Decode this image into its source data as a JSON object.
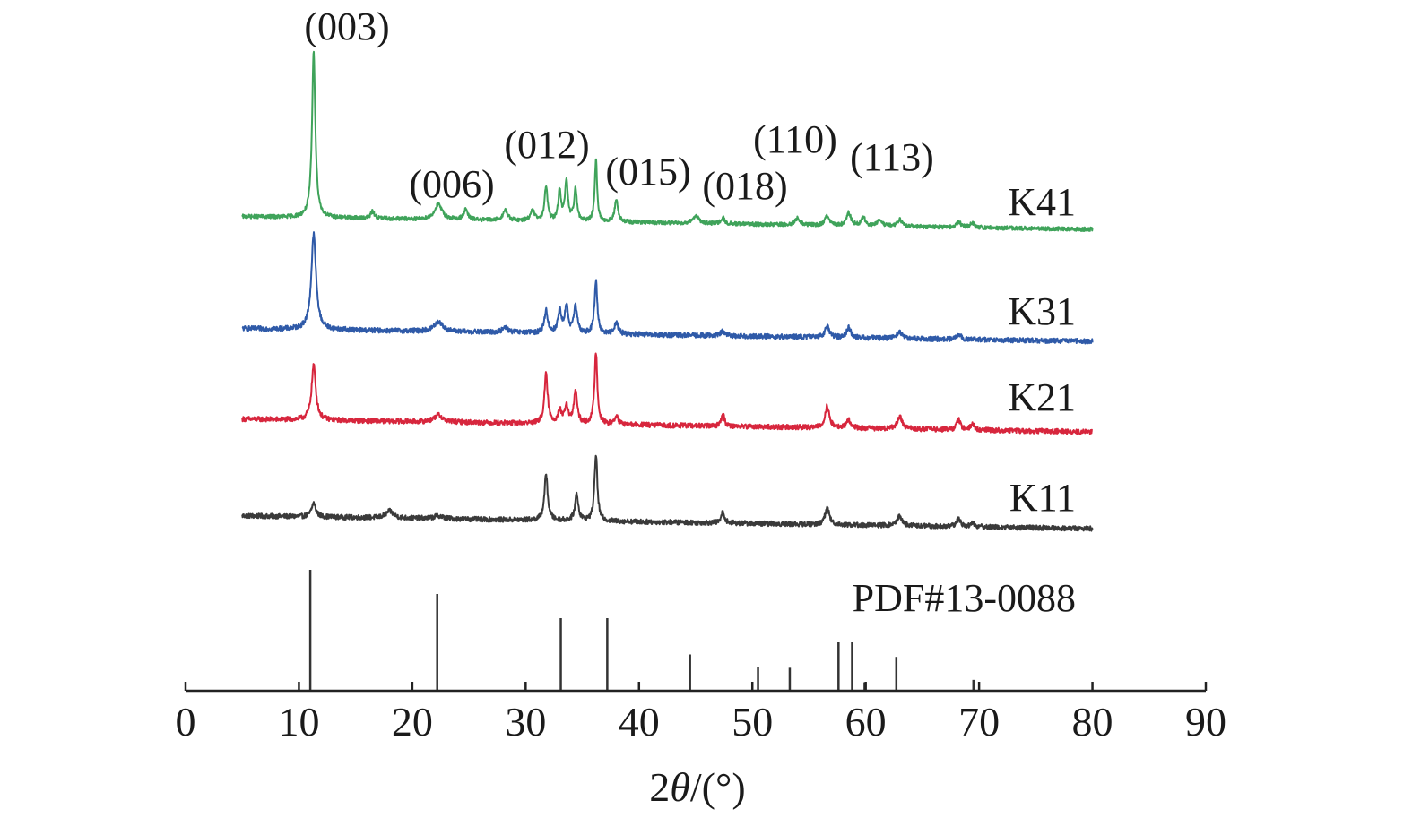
{
  "chart_data": {
    "type": "line",
    "xlabel_prefix": "2",
    "xlabel_symbol": "θ",
    "xlabel_suffix": "/(°)",
    "xlim": [
      0,
      90
    ],
    "xticks": [
      0,
      10,
      20,
      30,
      40,
      50,
      60,
      70,
      80,
      90
    ],
    "grid": false,
    "series": [
      {
        "name": "K11",
        "color": "#3a3a3a",
        "base_start": 0.13,
        "base_end": 0.0,
        "noise": 0.05,
        "peaks": [
          [
            11.3,
            0.14,
            0.45
          ],
          [
            18.0,
            0.07,
            0.8
          ],
          [
            22.3,
            0.03,
            0.9
          ],
          [
            31.8,
            0.47,
            0.35
          ],
          [
            34.5,
            0.27,
            0.35
          ],
          [
            36.2,
            0.68,
            0.3
          ],
          [
            47.4,
            0.11,
            0.35
          ],
          [
            56.6,
            0.17,
            0.45
          ],
          [
            63.0,
            0.1,
            0.5
          ],
          [
            68.2,
            0.08,
            0.4
          ],
          [
            69.4,
            0.04,
            0.4
          ]
        ]
      },
      {
        "name": "K21",
        "color": "#d7263d",
        "base_start": 0.13,
        "base_end": 0.0,
        "noise": 0.05,
        "peaks": [
          [
            11.3,
            0.56,
            0.45
          ],
          [
            22.3,
            0.07,
            0.9
          ],
          [
            31.8,
            0.5,
            0.35
          ],
          [
            33.0,
            0.13,
            0.35
          ],
          [
            33.6,
            0.18,
            0.35
          ],
          [
            34.4,
            0.33,
            0.35
          ],
          [
            36.2,
            0.73,
            0.3
          ],
          [
            38.0,
            0.08,
            0.4
          ],
          [
            47.4,
            0.12,
            0.35
          ],
          [
            56.6,
            0.22,
            0.45
          ],
          [
            58.5,
            0.08,
            0.45
          ],
          [
            63.0,
            0.13,
            0.5
          ],
          [
            68.2,
            0.1,
            0.4
          ],
          [
            69.4,
            0.06,
            0.4
          ]
        ]
      },
      {
        "name": "K31",
        "color": "#2f5aa8",
        "base_start": 0.13,
        "base_end": 0.0,
        "noise": 0.05,
        "peaks": [
          [
            11.3,
            0.97,
            0.5
          ],
          [
            22.3,
            0.1,
            0.9
          ],
          [
            28.2,
            0.05,
            0.6
          ],
          [
            31.8,
            0.23,
            0.35
          ],
          [
            33.0,
            0.22,
            0.35
          ],
          [
            33.6,
            0.27,
            0.35
          ],
          [
            34.4,
            0.27,
            0.35
          ],
          [
            36.2,
            0.53,
            0.3
          ],
          [
            38.0,
            0.12,
            0.4
          ],
          [
            47.4,
            0.06,
            0.35
          ],
          [
            56.6,
            0.12,
            0.45
          ],
          [
            58.5,
            0.1,
            0.45
          ],
          [
            63.0,
            0.07,
            0.5
          ],
          [
            68.2,
            0.06,
            0.4
          ]
        ]
      },
      {
        "name": "K41",
        "color": "#3fa35a",
        "base_start": 0.13,
        "base_end": 0.0,
        "noise": 0.04,
        "peaks": [
          [
            11.3,
            1.69,
            0.35
          ],
          [
            16.5,
            0.07,
            0.4
          ],
          [
            22.3,
            0.15,
            0.8
          ],
          [
            24.7,
            0.1,
            0.45
          ],
          [
            28.2,
            0.1,
            0.5
          ],
          [
            30.6,
            0.1,
            0.45
          ],
          [
            31.8,
            0.36,
            0.3
          ],
          [
            33.0,
            0.3,
            0.3
          ],
          [
            33.6,
            0.4,
            0.3
          ],
          [
            34.4,
            0.33,
            0.3
          ],
          [
            36.2,
            0.63,
            0.25
          ],
          [
            38.0,
            0.22,
            0.35
          ],
          [
            45.0,
            0.08,
            0.6
          ],
          [
            47.4,
            0.06,
            0.35
          ],
          [
            54.0,
            0.07,
            0.5
          ],
          [
            56.6,
            0.1,
            0.4
          ],
          [
            58.5,
            0.13,
            0.45
          ],
          [
            59.8,
            0.08,
            0.45
          ],
          [
            61.2,
            0.06,
            0.5
          ],
          [
            63.0,
            0.07,
            0.5
          ],
          [
            68.2,
            0.06,
            0.4
          ],
          [
            69.4,
            0.05,
            0.4
          ]
        ]
      }
    ],
    "reference": {
      "name": "PDF#13-0088",
      "color": "#333333",
      "lines": [
        [
          11.0,
          1.0
        ],
        [
          22.2,
          0.8
        ],
        [
          33.1,
          0.6
        ],
        [
          37.2,
          0.6
        ],
        [
          44.5,
          0.3
        ],
        [
          50.5,
          0.2
        ],
        [
          53.3,
          0.19
        ],
        [
          57.6,
          0.4
        ],
        [
          58.8,
          0.4
        ],
        [
          59.9,
          0.07
        ],
        [
          62.7,
          0.28
        ],
        [
          69.5,
          0.09
        ]
      ]
    },
    "peak_labels": [
      {
        "text": "(003)",
        "x": 11.3
      },
      {
        "text": "(006)",
        "x": 23.0
      },
      {
        "text": "(012)",
        "x": 31.5
      },
      {
        "text": "(015)",
        "x": 40.0
      },
      {
        "text": "(018)",
        "x": 48.5
      },
      {
        "text": "(110)",
        "x": 53.5
      },
      {
        "text": "(113)",
        "x": 62.0
      }
    ]
  }
}
